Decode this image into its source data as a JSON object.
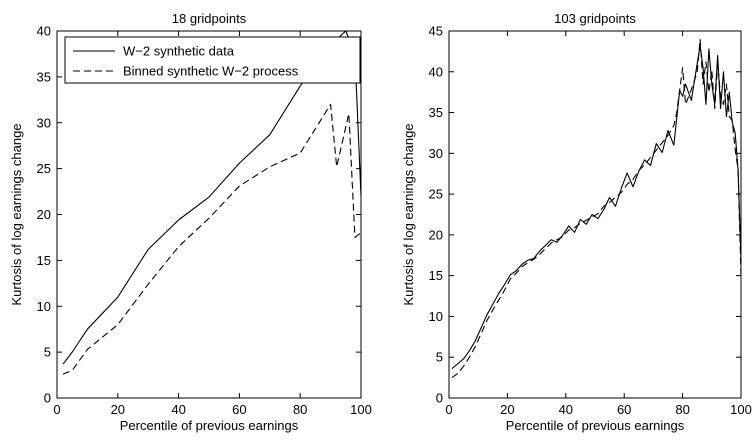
{
  "chart_data": [
    {
      "type": "line",
      "title": "18 gridpoints",
      "xlabel": "Percentile of previous earnings",
      "ylabel": "Kurtosis of log earnings change",
      "xlim": [
        0,
        100
      ],
      "ylim": [
        0,
        40
      ],
      "xticks": [
        0,
        20,
        40,
        60,
        80,
        100
      ],
      "yticks": [
        0,
        5,
        10,
        15,
        20,
        25,
        30,
        35,
        40
      ],
      "grid": false,
      "legend_position": "top-left",
      "series": [
        {
          "name": "W−2 synthetic data",
          "style": "solid",
          "color": "#000000",
          "x": [
            2,
            5,
            10,
            20,
            30,
            40,
            50,
            60,
            70,
            80,
            90,
            95,
            98,
            100
          ],
          "y": [
            3.7,
            5.0,
            7.5,
            11.0,
            16.2,
            19.4,
            21.9,
            25.6,
            28.7,
            34.0,
            38.5,
            40.0,
            37.5,
            22.0
          ]
        },
        {
          "name": "Binned synthetic W−2 process",
          "style": "dashed",
          "color": "#000000",
          "x": [
            2,
            5,
            10,
            20,
            30,
            40,
            50,
            60,
            70,
            80,
            90,
            92,
            96,
            98,
            100
          ],
          "y": [
            2.6,
            3.0,
            5.3,
            8.0,
            12.4,
            16.5,
            19.6,
            23.1,
            25.2,
            26.7,
            32.0,
            25.2,
            31.0,
            17.5,
            18.0
          ]
        }
      ]
    },
    {
      "type": "line",
      "title": "103 gridpoints",
      "xlabel": "Percentile of previous earnings",
      "ylabel": "Kurtosis of log earnings change",
      "xlim": [
        0,
        100
      ],
      "ylim": [
        0,
        45
      ],
      "xticks": [
        0,
        20,
        40,
        60,
        80,
        100
      ],
      "yticks": [
        0,
        5,
        10,
        15,
        20,
        25,
        30,
        35,
        40,
        45
      ],
      "grid": false,
      "series": [
        {
          "style": "solid",
          "color": "#000000",
          "x": [
            1,
            3,
            5,
            7,
            9,
            11,
            13,
            15,
            17,
            19,
            21,
            23,
            25,
            27,
            29,
            31,
            33,
            35,
            37,
            39,
            41,
            43,
            45,
            47,
            49,
            51,
            53,
            55,
            57,
            59,
            61,
            63,
            65,
            67,
            69,
            71,
            73,
            75,
            77,
            79,
            80,
            81,
            83,
            85,
            86,
            87,
            88,
            89,
            90,
            91,
            92,
            93,
            94,
            95,
            96,
            97,
            98,
            99,
            100
          ],
          "y": [
            3.6,
            4.2,
            4.8,
            5.8,
            7.0,
            8.6,
            10.2,
            11.5,
            12.8,
            13.9,
            15.1,
            15.6,
            16.4,
            16.9,
            17.1,
            18.0,
            18.7,
            19.4,
            19.1,
            20.0,
            21.1,
            20.3,
            21.9,
            21.3,
            22.5,
            22.0,
            23.1,
            24.6,
            23.5,
            25.7,
            27.6,
            25.9,
            27.8,
            29.2,
            28.5,
            31.2,
            30.1,
            32.8,
            31.0,
            37.7,
            37.0,
            38.5,
            36.5,
            41.0,
            43.2,
            40.5,
            36.0,
            42.8,
            38.5,
            36.0,
            42.0,
            35.5,
            40.0,
            34.5,
            37.5,
            33.8,
            32.5,
            28.0,
            17.0
          ]
        },
        {
          "style": "dashed",
          "color": "#000000",
          "x": [
            1,
            3,
            5,
            7,
            9,
            11,
            13,
            15,
            17,
            19,
            21,
            23,
            25,
            27,
            29,
            31,
            33,
            35,
            37,
            39,
            41,
            43,
            45,
            47,
            49,
            51,
            53,
            55,
            57,
            59,
            61,
            63,
            65,
            67,
            69,
            71,
            73,
            75,
            77,
            78,
            80,
            81,
            83,
            85,
            86,
            87,
            88,
            89,
            90,
            91,
            92,
            93,
            94,
            95,
            96,
            97,
            98,
            99,
            100
          ],
          "y": [
            2.5,
            3.0,
            3.9,
            5.0,
            6.3,
            7.9,
            9.5,
            10.8,
            12.0,
            13.2,
            14.6,
            15.3,
            16.1,
            16.6,
            17.0,
            17.6,
            18.3,
            19.0,
            19.4,
            19.8,
            20.6,
            20.9,
            21.4,
            21.8,
            22.2,
            22.6,
            23.5,
            24.0,
            24.6,
            25.2,
            26.2,
            26.8,
            27.9,
            28.6,
            29.5,
            30.4,
            31.3,
            32.2,
            33.4,
            35.0,
            40.5,
            36.0,
            37.8,
            40.0,
            44.0,
            38.5,
            41.2,
            37.5,
            40.2,
            35.5,
            41.0,
            37.0,
            36.0,
            38.5,
            34.5,
            34.0,
            30.5,
            28.0,
            15.0
          ]
        }
      ]
    }
  ]
}
